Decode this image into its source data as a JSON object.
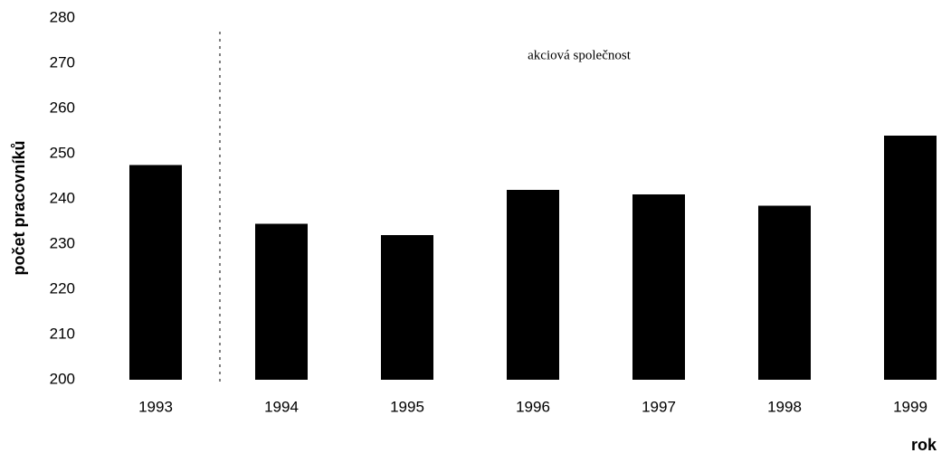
{
  "chart_data": {
    "type": "bar",
    "categories": [
      "1993",
      "1994",
      "1995",
      "1996",
      "1997",
      "1998",
      "1999"
    ],
    "values": [
      247.5,
      234.5,
      232,
      242,
      241,
      238.5,
      254
    ],
    "color": "#000000",
    "ylim": [
      200,
      280
    ],
    "yticks": [
      200,
      210,
      220,
      230,
      240,
      250,
      260,
      270,
      280
    ],
    "ylabel": "počet pracovníků",
    "xlabel": "rok",
    "annotation": "akciová společnost",
    "grid": false
  }
}
